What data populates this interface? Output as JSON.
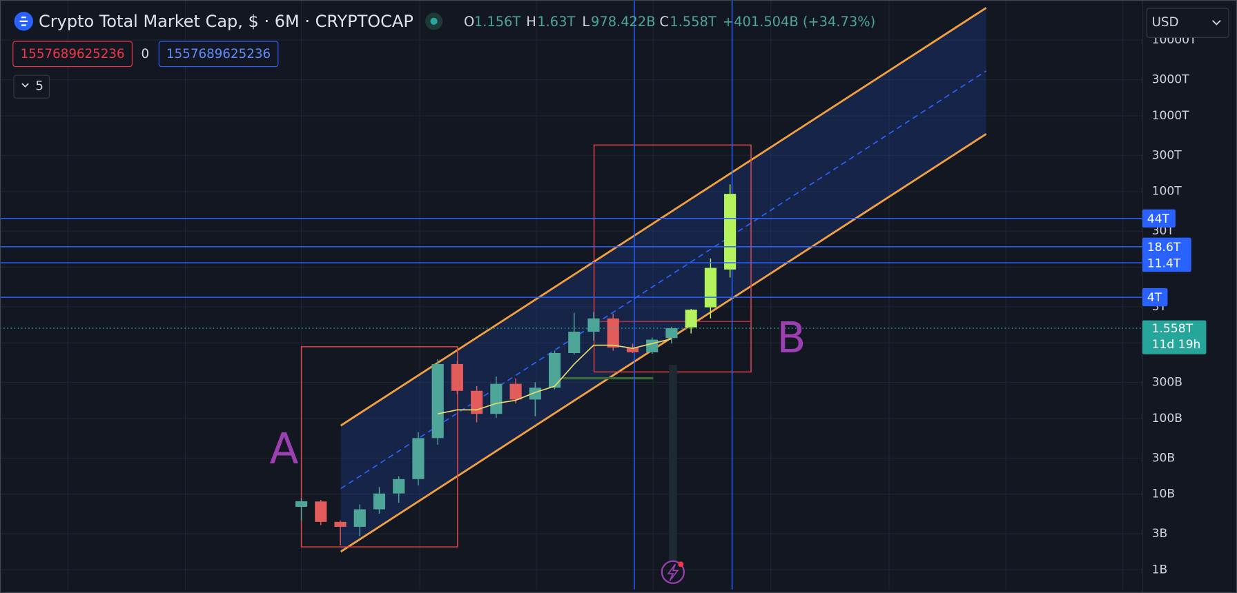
{
  "header": {
    "title": "Crypto Total Market Cap, $ · 6M · CRYPTOCAP",
    "ohlc": [
      [
        "O",
        "1.156T"
      ],
      [
        "H",
        "1.63T"
      ],
      [
        "L",
        "978.422B"
      ],
      [
        "C",
        "1.558T"
      ]
    ],
    "change": "+401.504B (+34.73%)"
  },
  "toolbar": {
    "left_input": "1557689625236",
    "middle": "0",
    "right_input": "1557689625236",
    "collapsed_count": "5",
    "currency": "USD"
  },
  "chart_data": {
    "type": "candlestick",
    "log": true,
    "grid": true,
    "ylim": [
      550000000,
      33900000000000000
    ],
    "yticks": [
      {
        "value": 1000000000,
        "label": "1B"
      },
      {
        "value": 3000000000,
        "label": "3B"
      },
      {
        "value": 10000000000,
        "label": "10B"
      },
      {
        "value": 30000000000,
        "label": "30B"
      },
      {
        "value": 100000000000,
        "label": "100B"
      },
      {
        "value": 300000000000,
        "label": "300B"
      },
      {
        "value": 1000000000000,
        "label": "1T"
      },
      {
        "value": 3000000000000,
        "label": "3T"
      },
      {
        "value": 10000000000000,
        "label": "10T"
      },
      {
        "value": 30000000000000,
        "label": "30T"
      },
      {
        "value": 100000000000000,
        "label": "100T"
      },
      {
        "value": 300000000000000,
        "label": "300T"
      },
      {
        "value": 1000000000000000,
        "label": "1000T"
      },
      {
        "value": 3000000000000000,
        "label": "3000T"
      },
      {
        "value": 10000000000000000,
        "label": "10000T"
      }
    ],
    "up_color": "#4ea699",
    "down_color": "#e25c5c",
    "open": [
      6800000000,
      8000000000,
      4300000000,
      3700000000,
      6300000000,
      10200000000,
      15800000000,
      55000000000,
      524000000000,
      232000000000,
      115000000000,
      287000000000,
      178000000000,
      255000000000,
      732000000000,
      1400000000000,
      2100000000000,
      866000000000,
      750000000000,
      1156000000000
    ],
    "high": [
      8900000000,
      8400000000,
      4500000000,
      7300000000,
      12400000000,
      17300000000,
      66000000000,
      605000000000,
      576000000000,
      268000000000,
      357000000000,
      339000000000,
      301000000000,
      787000000000,
      2490000000000,
      2550000000000,
      2430000000000,
      977000000000,
      1170000000000,
      1630000000000
    ],
    "low": [
      4500000000,
      3900000000,
      2100000000,
      2800000000,
      5500000000,
      7700000000,
      13000000000,
      45000000000,
      210000000000,
      89000000000,
      102000000000,
      158000000000,
      107000000000,
      243000000000,
      698000000000,
      1070000000000,
      787000000000,
      732000000000,
      715000000000,
      978422000000
    ],
    "close": [
      8060000000,
      4300000000,
      3700000000,
      6300000000,
      10200000000,
      15800000000,
      55000000000,
      524000000000,
      232000000000,
      115000000000,
      287000000000,
      178000000000,
      255000000000,
      732000000000,
      1400000000000,
      2100000000000,
      866000000000,
      750000000000,
      1100000000000,
      1558000000000
    ],
    "projection": {
      "color": "#b5f35c",
      "open": [
        1600000000000,
        2940000000000,
        9300000000000
      ],
      "high": [
        2800000000000,
        13000000000000,
        124000000000000
      ],
      "low": [
        1330000000000,
        2100000000000,
        7300000000000
      ],
      "close": [
        2740000000000,
        9770000000000,
        93000000000000
      ]
    },
    "ma": {
      "color": "#e8d96a",
      "values": [
        null,
        null,
        null,
        null,
        null,
        null,
        null,
        115000000000,
        130000000000,
        130000000000,
        158000000000,
        174000000000,
        221000000000,
        267000000000,
        523000000000,
        930000000000,
        930000000000,
        845000000000,
        977000000000,
        1127000000000
      ]
    },
    "levels": {
      "color": "#2962ff",
      "items": [
        {
          "value": 44000000000000,
          "label": "44T"
        },
        {
          "value": 18600000000000,
          "label": "18.6T"
        },
        {
          "value": 11400000000000,
          "label": "11.4T"
        },
        {
          "value": 4000000000000,
          "label": "4T"
        }
      ]
    },
    "last_price": {
      "value": 1558000000000,
      "label": "1.558T",
      "countdown": "11d 19h",
      "color": "#26a69a"
    },
    "annotations": [
      "A",
      "B"
    ]
  }
}
